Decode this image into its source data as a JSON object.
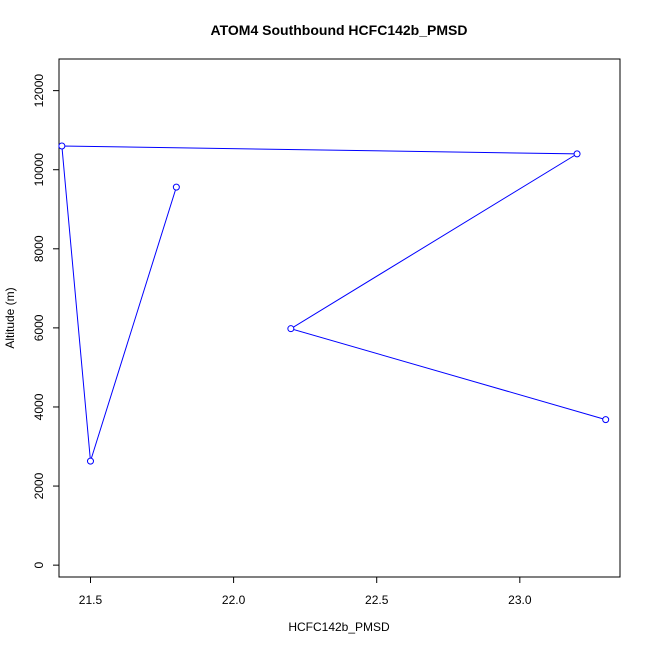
{
  "chart_data": {
    "type": "line",
    "title": "ATOM4 Southbound HCFC142b_PMSD",
    "xlabel": "HCFC142b_PMSD",
    "ylabel": "Altitude (m)",
    "xlim": [
      21.39,
      23.35
    ],
    "ylim": [
      -300,
      12800
    ],
    "x_ticks": [
      21.5,
      22.0,
      22.5,
      23.0
    ],
    "x_tick_labels": [
      "21.5",
      "22.0",
      "22.5",
      "23.0"
    ],
    "y_ticks": [
      0,
      2000,
      4000,
      6000,
      8000,
      10000,
      12000
    ],
    "y_tick_labels": [
      "0",
      "2000",
      "4000",
      "6000",
      "8000",
      "10000",
      "12000"
    ],
    "series": [
      {
        "color": "#0000ff",
        "marker": "open-circle",
        "points": [
          {
            "x": 21.8,
            "y": 9560
          },
          {
            "x": 21.5,
            "y": 2630
          },
          {
            "x": 21.4,
            "y": 10600
          },
          {
            "x": 23.2,
            "y": 10400
          },
          {
            "x": 22.2,
            "y": 5980
          },
          {
            "x": 23.3,
            "y": 3680
          }
        ]
      }
    ],
    "grid": false,
    "legend": "none"
  }
}
